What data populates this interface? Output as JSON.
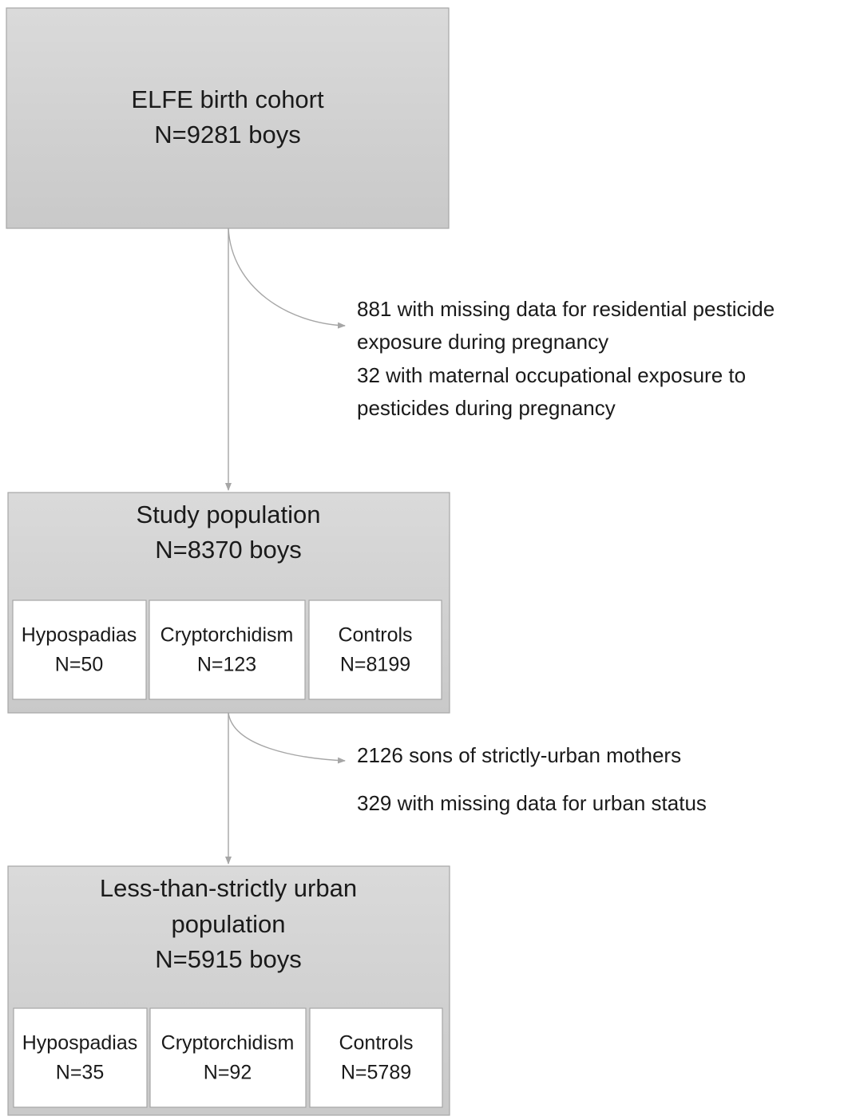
{
  "boxes": [
    {
      "lines": [
        "ELFE birth cohort",
        "N=9281 boys"
      ]
    },
    {
      "lines": [
        "Study population",
        "N=8370 boys"
      ],
      "groups": [
        {
          "label": "Hypospadias",
          "count": "N=50"
        },
        {
          "label": "Cryptorchidism",
          "count": "N=123"
        },
        {
          "label": "Controls",
          "count": "N=8199"
        }
      ]
    },
    {
      "lines": [
        "Less-than-strictly urban",
        "population",
        "N=5915 boys"
      ],
      "groups": [
        {
          "label": "Hypospadias",
          "count": "N=35"
        },
        {
          "label": "Cryptorchidism",
          "count": "N=92"
        },
        {
          "label": "Controls",
          "count": "N=5789"
        }
      ]
    }
  ],
  "exclusions": [
    {
      "items": [
        [
          "881 with missing data for residential pesticide",
          "exposure during pregnancy"
        ],
        [
          "32 with maternal occupational exposure to",
          "pesticides during pregnancy"
        ]
      ]
    },
    {
      "items": [
        [
          "2126 sons of strictly-urban mothers"
        ],
        [
          "329 with missing data for urban status"
        ]
      ]
    }
  ]
}
